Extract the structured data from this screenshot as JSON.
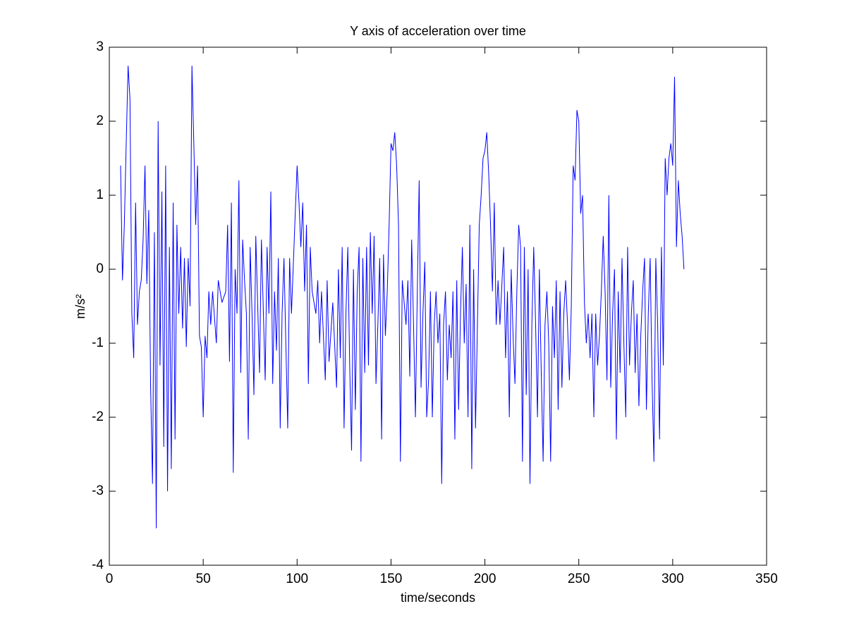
{
  "chart_data": {
    "type": "line",
    "title": "Y axis of acceleration over time",
    "xlabel": "time/seconds",
    "ylabel": "m/s²",
    "color": "#0000ff",
    "xlim": [
      0,
      350
    ],
    "xticks": [
      0,
      50,
      100,
      150,
      200,
      250,
      300,
      350
    ],
    "ylim": [
      -4,
      3
    ],
    "yticks": [
      -4,
      -3,
      -2,
      -1,
      0,
      1,
      2,
      3
    ],
    "grid": false,
    "x": [
      6,
      7,
      8,
      9,
      10,
      11,
      12,
      13,
      14,
      15,
      16,
      17,
      18,
      19,
      20,
      21,
      22,
      23,
      24,
      25,
      26,
      27,
      28,
      29,
      30,
      31,
      32,
      33,
      34,
      35,
      36,
      37,
      38,
      39,
      40,
      41,
      42,
      43,
      44,
      45,
      46,
      47,
      48,
      49,
      50,
      51,
      52,
      53,
      54,
      55,
      57,
      58,
      60,
      62,
      63,
      64,
      65,
      66,
      67,
      68,
      69,
      70,
      71,
      72,
      73,
      74,
      75,
      76,
      77,
      78,
      80,
      81,
      83,
      84,
      85,
      86,
      87,
      88,
      89,
      90,
      91,
      92,
      93,
      94,
      95,
      96,
      97,
      99,
      100,
      101,
      102,
      103,
      104,
      105,
      106,
      107,
      108,
      110,
      111,
      112,
      113,
      114,
      115,
      116,
      117,
      119,
      121,
      122,
      123,
      124,
      125,
      126,
      127,
      128,
      129,
      130,
      131,
      132,
      133,
      134,
      135,
      136,
      137,
      138,
      139,
      140,
      141,
      142,
      143,
      144,
      145,
      146,
      147,
      148,
      149,
      150,
      151,
      152,
      153,
      154,
      155,
      156,
      158,
      159,
      160,
      161,
      162,
      163,
      164,
      165,
      166,
      167,
      168,
      169,
      170,
      171,
      172,
      173,
      174,
      175,
      176,
      177,
      178,
      179,
      180,
      181,
      182,
      183,
      184,
      185,
      186,
      187,
      188,
      189,
      190,
      191,
      192,
      193,
      194,
      195,
      197,
      198,
      199,
      200,
      201,
      202,
      203,
      204,
      205,
      206,
      207,
      208,
      210,
      211,
      212,
      213,
      214,
      215,
      216,
      217,
      218,
      219,
      220,
      221,
      222,
      223,
      224,
      225,
      226,
      227,
      228,
      229,
      230,
      231,
      232,
      233,
      234,
      235,
      236,
      237,
      238,
      239,
      240,
      241,
      242,
      243,
      244,
      245,
      246,
      247,
      248,
      249,
      250,
      251,
      252,
      253,
      254,
      255,
      256,
      257,
      258,
      259,
      260,
      261,
      262,
      263,
      264,
      265,
      266,
      267,
      268,
      269,
      270,
      271,
      272,
      273,
      274,
      275,
      276,
      277,
      278,
      279,
      280,
      281,
      282,
      283,
      284,
      285,
      286,
      287,
      288,
      289,
      290,
      291,
      292,
      293,
      294,
      295,
      296,
      297,
      298,
      299,
      300,
      301,
      302,
      303,
      304,
      305,
      306
    ],
    "series": [
      {
        "name": "acceleration",
        "color": "#0000ff",
        "values": [
          1.4,
          -0.15,
          0.6,
          1.7,
          2.75,
          2.3,
          -0.6,
          -1.2,
          0.9,
          -0.75,
          -0.3,
          -0.15,
          0.4,
          1.4,
          -0.2,
          0.8,
          -1.6,
          -2.9,
          0.5,
          -3.5,
          2.0,
          -1.3,
          1.05,
          -2.4,
          1.4,
          -3.0,
          0.3,
          -2.7,
          0.9,
          -2.3,
          0.6,
          -0.6,
          0.3,
          -0.8,
          0.15,
          -1.05,
          0.15,
          -0.5,
          2.75,
          1.7,
          0.6,
          1.4,
          -0.9,
          -1.05,
          -2.0,
          -0.9,
          -1.2,
          -0.3,
          -0.75,
          -0.3,
          -1.0,
          -0.15,
          -0.45,
          -0.3,
          0.6,
          -1.25,
          0.9,
          -2.75,
          0.0,
          -0.6,
          1.2,
          -1.4,
          0.4,
          -0.15,
          -0.6,
          -2.3,
          0.3,
          -0.6,
          -1.7,
          0.45,
          -1.4,
          0.4,
          -1.5,
          0.3,
          -0.6,
          1.05,
          -1.55,
          -0.3,
          -1.1,
          0.15,
          -2.15,
          -0.6,
          0.15,
          -1.0,
          -2.15,
          0.15,
          -0.6,
          0.75,
          1.4,
          0.9,
          0.3,
          0.9,
          -0.3,
          0.6,
          -1.55,
          0.3,
          -0.3,
          -0.6,
          -0.15,
          -1.0,
          -0.3,
          -0.9,
          -1.5,
          -0.15,
          -1.25,
          -0.45,
          -1.6,
          0.0,
          -1.2,
          0.3,
          -2.15,
          -0.6,
          0.3,
          -1.3,
          -2.45,
          0.0,
          -1.9,
          -0.3,
          0.3,
          -2.6,
          0.15,
          -1.4,
          0.3,
          -1.3,
          0.5,
          -0.6,
          0.45,
          -1.55,
          -0.75,
          0.15,
          -2.3,
          0.2,
          -0.9,
          -0.3,
          0.6,
          1.7,
          1.6,
          1.85,
          1.4,
          0.6,
          -2.6,
          -0.15,
          -0.75,
          -0.15,
          -1.45,
          0.4,
          -0.75,
          -2.0,
          -0.3,
          1.2,
          -1.6,
          -0.6,
          0.1,
          -2.0,
          -1.5,
          -0.3,
          -2.0,
          -0.75,
          -0.3,
          -1.0,
          -0.6,
          -2.9,
          -0.75,
          -0.3,
          -1.5,
          -0.75,
          -1.2,
          -0.3,
          -2.3,
          -0.15,
          -1.9,
          -0.6,
          0.3,
          -1.0,
          -0.2,
          -2.0,
          0.6,
          -2.7,
          0.0,
          -2.15,
          0.6,
          1.0,
          1.5,
          1.6,
          1.85,
          1.3,
          0.6,
          -0.3,
          0.9,
          -0.75,
          -0.15,
          -0.75,
          0.3,
          -1.2,
          -0.3,
          -2.0,
          0.0,
          -0.9,
          -1.55,
          -0.3,
          0.6,
          0.3,
          -2.6,
          0.3,
          -1.7,
          0.0,
          -2.9,
          -0.75,
          0.3,
          -0.75,
          -2.0,
          0.0,
          -1.4,
          -2.6,
          -0.75,
          -0.3,
          -1.0,
          -2.6,
          -0.5,
          -1.2,
          -0.15,
          -1.9,
          -0.3,
          -1.6,
          -0.6,
          -0.15,
          -0.75,
          -1.5,
          -0.5,
          1.4,
          1.2,
          2.15,
          2.0,
          0.75,
          1.0,
          -0.45,
          -1.0,
          -0.6,
          -1.2,
          -0.6,
          -2.0,
          -0.6,
          -1.3,
          -0.9,
          -0.3,
          0.45,
          -0.3,
          -1.5,
          1.0,
          -1.6,
          -0.6,
          0.0,
          -2.3,
          -0.3,
          -1.4,
          0.15,
          -1.0,
          -2.0,
          0.3,
          -1.3,
          -0.6,
          -0.15,
          -1.4,
          -0.6,
          -1.85,
          -0.9,
          -0.3,
          0.15,
          -1.9,
          -0.6,
          0.15,
          -1.5,
          -2.6,
          0.15,
          -0.75,
          -2.3,
          0.3,
          -1.3,
          1.5,
          1.0,
          1.5,
          1.7,
          1.4,
          2.6,
          0.3,
          1.2,
          0.75,
          0.45,
          0.0
        ]
      }
    ]
  }
}
